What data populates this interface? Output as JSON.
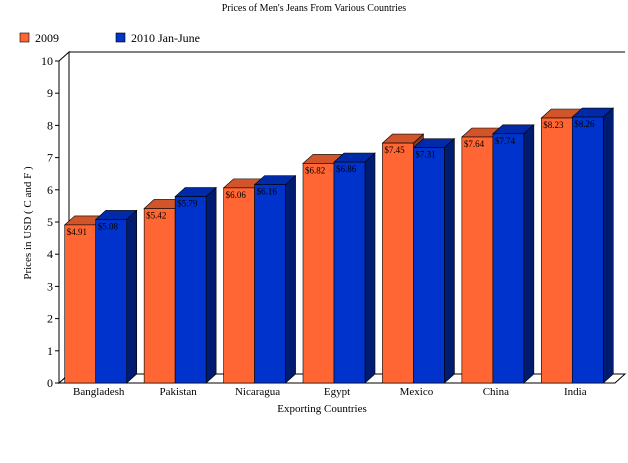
{
  "chart_data": {
    "type": "bar",
    "title": "Prices of Men's Jeans From Various Countries",
    "xlabel": "Exporting Countries",
    "ylabel": "Prices in USD ( C and F )",
    "ylim": [
      0,
      10
    ],
    "y_ticks": [
      "0",
      "1",
      "2",
      "3",
      "4",
      "5",
      "6",
      "7",
      "8",
      "9",
      "10"
    ],
    "categories": [
      "Bangladesh",
      "Pakistan",
      "Nicaragua",
      "Egypt",
      "Mexico",
      "China",
      "India"
    ],
    "series": [
      {
        "name": "2009",
        "color": "#ff6633",
        "values": [
          4.91,
          5.42,
          6.06,
          6.82,
          7.45,
          7.64,
          8.23
        ],
        "labels": [
          "$4.91",
          "$5.42",
          "$6.06",
          "$6.82",
          "$7.45",
          "$7.64",
          "$8.23"
        ]
      },
      {
        "name": "2010 Jan-June",
        "color": "#0033cc",
        "values": [
          5.08,
          5.79,
          6.16,
          6.86,
          7.31,
          7.74,
          8.26
        ],
        "labels": [
          "$5.08",
          "$5.79",
          "$6.16",
          "$6.86",
          "$7.31",
          "$7.74",
          "$8.26"
        ]
      }
    ],
    "legend": "top-left",
    "grid": false,
    "style": "3d-bar"
  }
}
